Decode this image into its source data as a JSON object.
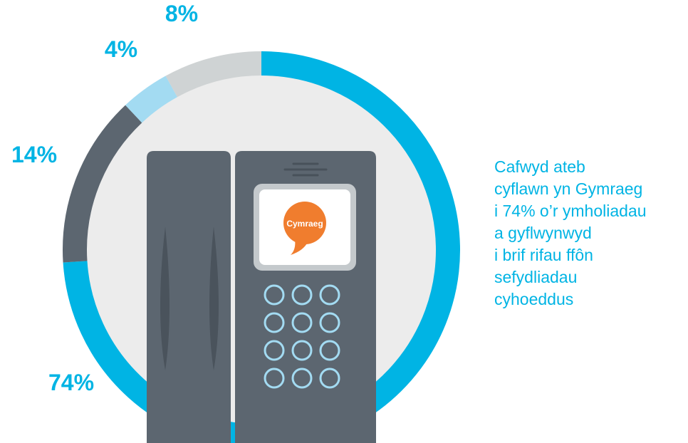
{
  "chart_data": {
    "type": "pie",
    "style": "donut",
    "slices": [
      {
        "label": "74%",
        "value": 74,
        "color": "#00b4e4"
      },
      {
        "label": "14%",
        "value": 14,
        "color": "#5c6670"
      },
      {
        "label": "4%",
        "value": 4,
        "color": "#a3dbf2"
      },
      {
        "label": "8%",
        "value": 8,
        "color": "#cfd3d4"
      }
    ],
    "label_color": "#00b4e4"
  },
  "caption": {
    "lines": [
      "Cafwyd ateb",
      "cyflawn yn Gymraeg",
      "i 74% o’r ymholiadau",
      "a gyflwynwyd",
      "i brif rifau ffôn",
      "sefydliadau",
      "cyhoeddus"
    ],
    "color": "#00b4e4"
  },
  "illustration": {
    "logo_text": "Cymraeg",
    "logo_color": "#f07d2e",
    "icon": "desk-phone-icon"
  }
}
